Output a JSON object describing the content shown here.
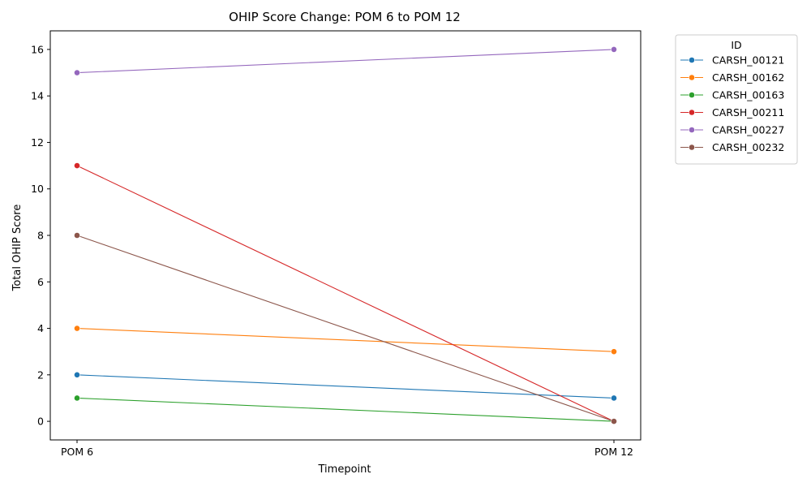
{
  "chart_data": {
    "type": "line",
    "title": "OHIP Score Change: POM 6 to POM 12",
    "xlabel": "Timepoint",
    "ylabel": "Total OHIP Score",
    "categories": [
      "POM 6",
      "POM 12"
    ],
    "ylim": [
      -0.8,
      16.8
    ],
    "yticks": [
      0,
      2,
      4,
      6,
      8,
      10,
      12,
      14,
      16
    ],
    "legend": {
      "title": "ID",
      "placement": "outside-top-right"
    },
    "grid": false,
    "series": [
      {
        "name": "CARSH_00121",
        "color": "#1f77b4",
        "values": [
          2,
          1
        ]
      },
      {
        "name": "CARSH_00162",
        "color": "#ff7f0e",
        "values": [
          4,
          3
        ]
      },
      {
        "name": "CARSH_00163",
        "color": "#2ca02c",
        "values": [
          1,
          0
        ]
      },
      {
        "name": "CARSH_00211",
        "color": "#d62728",
        "values": [
          11,
          0
        ]
      },
      {
        "name": "CARSH_00227",
        "color": "#9467bd",
        "values": [
          15,
          16
        ]
      },
      {
        "name": "CARSH_00232",
        "color": "#8c564b",
        "values": [
          8,
          0
        ]
      }
    ]
  }
}
